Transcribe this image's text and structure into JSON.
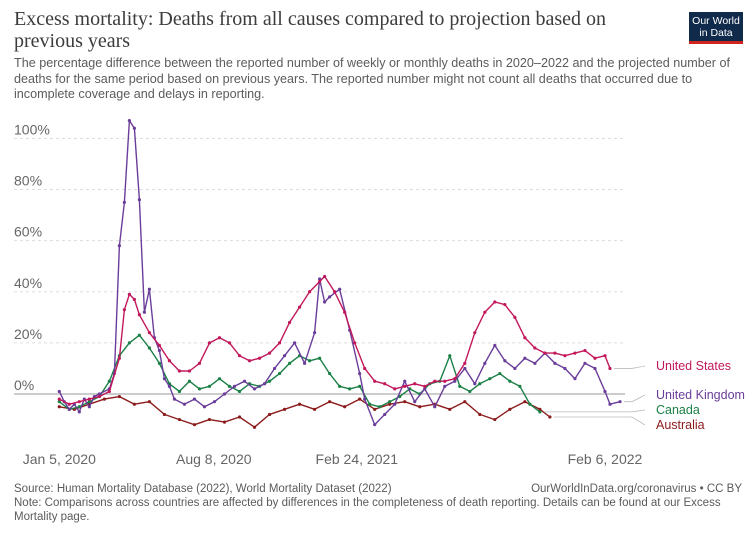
{
  "header": {
    "title": "Excess mortality: Deaths from all causes compared to projection based on previous years",
    "subtitle": "The percentage difference between the reported number of weekly or monthly deaths in 2020–2022 and the projected number of deaths for the same period based on previous years. The reported number might not count all deaths that occurred due to incomplete coverage and delays in reporting.",
    "logo_line1": "Our World",
    "logo_line2": "in Data"
  },
  "footer": {
    "source": "Source: Human Mortality Database (2022), World Mortality Dataset (2022)",
    "site": "OurWorldInData.org/coronavirus • CC BY",
    "note": "Note: Comparisons across countries are affected by differences in the completeness of death reporting. Details can be found at our Excess Mortality page."
  },
  "chart_data": {
    "type": "line",
    "ylim": [
      -18,
      108
    ],
    "yticks": [
      0,
      20,
      40,
      60,
      80,
      100
    ],
    "ytick_labels": [
      "0%",
      "20%",
      "40%",
      "60%",
      "80%",
      "100%"
    ],
    "xlim": [
      "2019-12-30",
      "2022-03-06"
    ],
    "xticks": [
      "2020-01-05",
      "2020-08-08",
      "2021-02-24",
      "2022-02-06"
    ],
    "xtick_labels": [
      "Jan 5, 2020",
      "Aug 8, 2020",
      "Feb 24, 2021",
      "Feb 6, 2022"
    ],
    "grid": "horizontal dashed",
    "legend": "right, labels at line ends",
    "series": [
      {
        "name": "United States",
        "color": "#c2185b",
        "points": [
          [
            "2020-01-05",
            -2
          ],
          [
            "2020-01-19",
            -4
          ],
          [
            "2020-02-02",
            -3
          ],
          [
            "2020-02-16",
            -2
          ],
          [
            "2020-03-01",
            -1
          ],
          [
            "2020-03-15",
            1
          ],
          [
            "2020-03-29",
            14
          ],
          [
            "2020-04-05",
            33
          ],
          [
            "2020-04-12",
            39
          ],
          [
            "2020-04-19",
            37
          ],
          [
            "2020-04-26",
            31
          ],
          [
            "2020-05-10",
            24
          ],
          [
            "2020-05-24",
            19
          ],
          [
            "2020-06-07",
            13
          ],
          [
            "2020-06-21",
            9
          ],
          [
            "2020-07-05",
            9
          ],
          [
            "2020-07-19",
            12
          ],
          [
            "2020-08-02",
            20
          ],
          [
            "2020-08-16",
            22
          ],
          [
            "2020-08-30",
            20
          ],
          [
            "2020-09-13",
            15
          ],
          [
            "2020-09-27",
            13
          ],
          [
            "2020-10-11",
            14
          ],
          [
            "2020-10-25",
            16
          ],
          [
            "2020-11-08",
            20
          ],
          [
            "2020-11-22",
            28
          ],
          [
            "2020-12-06",
            34
          ],
          [
            "2020-12-20",
            40
          ],
          [
            "2021-01-03",
            44
          ],
          [
            "2021-01-10",
            46
          ],
          [
            "2021-01-24",
            40
          ],
          [
            "2021-02-07",
            32
          ],
          [
            "2021-02-21",
            20
          ],
          [
            "2021-03-07",
            10
          ],
          [
            "2021-03-21",
            5
          ],
          [
            "2021-04-04",
            4
          ],
          [
            "2021-04-18",
            2
          ],
          [
            "2021-05-02",
            3
          ],
          [
            "2021-05-16",
            4
          ],
          [
            "2021-05-30",
            3
          ],
          [
            "2021-06-13",
            5
          ],
          [
            "2021-06-27",
            5
          ],
          [
            "2021-07-11",
            6
          ],
          [
            "2021-07-25",
            12
          ],
          [
            "2021-08-08",
            24
          ],
          [
            "2021-08-22",
            32
          ],
          [
            "2021-09-05",
            36
          ],
          [
            "2021-09-19",
            35
          ],
          [
            "2021-10-03",
            30
          ],
          [
            "2021-10-17",
            22
          ],
          [
            "2021-10-31",
            18
          ],
          [
            "2021-11-14",
            16
          ],
          [
            "2021-11-28",
            16
          ],
          [
            "2021-12-12",
            15
          ],
          [
            "2021-12-26",
            16
          ],
          [
            "2022-01-09",
            17
          ],
          [
            "2022-01-23",
            14
          ],
          [
            "2022-02-06",
            15
          ],
          [
            "2022-02-13",
            10
          ]
        ]
      },
      {
        "name": "United Kingdom",
        "color": "#6a3d9a",
        "points": [
          [
            "2020-01-05",
            1
          ],
          [
            "2020-01-12",
            -3
          ],
          [
            "2020-01-19",
            -6
          ],
          [
            "2020-01-26",
            -4
          ],
          [
            "2020-02-02",
            -7
          ],
          [
            "2020-02-09",
            -2
          ],
          [
            "2020-02-16",
            -5
          ],
          [
            "2020-02-23",
            -1
          ],
          [
            "2020-03-01",
            0
          ],
          [
            "2020-03-15",
            2
          ],
          [
            "2020-03-22",
            8
          ],
          [
            "2020-03-29",
            58
          ],
          [
            "2020-04-05",
            75
          ],
          [
            "2020-04-12",
            107
          ],
          [
            "2020-04-19",
            104
          ],
          [
            "2020-04-26",
            76
          ],
          [
            "2020-05-03",
            32
          ],
          [
            "2020-05-10",
            41
          ],
          [
            "2020-05-17",
            22
          ],
          [
            "2020-05-24",
            17
          ],
          [
            "2020-05-31",
            6
          ],
          [
            "2020-06-07",
            3
          ],
          [
            "2020-06-14",
            -2
          ],
          [
            "2020-06-28",
            -4
          ],
          [
            "2020-07-12",
            -2
          ],
          [
            "2020-07-26",
            -5
          ],
          [
            "2020-08-09",
            -3
          ],
          [
            "2020-08-23",
            0
          ],
          [
            "2020-09-06",
            3
          ],
          [
            "2020-09-20",
            5
          ],
          [
            "2020-10-04",
            2
          ],
          [
            "2020-10-18",
            4
          ],
          [
            "2020-11-01",
            10
          ],
          [
            "2020-11-15",
            15
          ],
          [
            "2020-11-29",
            20
          ],
          [
            "2020-12-13",
            12
          ],
          [
            "2020-12-27",
            24
          ],
          [
            "2021-01-03",
            45
          ],
          [
            "2021-01-10",
            36
          ],
          [
            "2021-01-17",
            38
          ],
          [
            "2021-01-31",
            41
          ],
          [
            "2021-02-14",
            25
          ],
          [
            "2021-02-28",
            8
          ],
          [
            "2021-03-07",
            -2
          ],
          [
            "2021-03-21",
            -12
          ],
          [
            "2021-04-04",
            -8
          ],
          [
            "2021-04-18",
            -4
          ],
          [
            "2021-05-02",
            5
          ],
          [
            "2021-05-16",
            -3
          ],
          [
            "2021-05-30",
            2
          ],
          [
            "2021-06-13",
            -5
          ],
          [
            "2021-06-27",
            3
          ],
          [
            "2021-07-11",
            5
          ],
          [
            "2021-07-25",
            10
          ],
          [
            "2021-08-08",
            4
          ],
          [
            "2021-08-22",
            12
          ],
          [
            "2021-09-05",
            19
          ],
          [
            "2021-09-19",
            13
          ],
          [
            "2021-10-03",
            10
          ],
          [
            "2021-10-17",
            14
          ],
          [
            "2021-10-31",
            12
          ],
          [
            "2021-11-14",
            16
          ],
          [
            "2021-11-28",
            12
          ],
          [
            "2021-12-12",
            10
          ],
          [
            "2021-12-26",
            6
          ],
          [
            "2022-01-09",
            12
          ],
          [
            "2022-01-23",
            10
          ],
          [
            "2022-02-06",
            1
          ],
          [
            "2022-02-13",
            -4
          ],
          [
            "2022-02-27",
            -3
          ]
        ]
      },
      {
        "name": "Canada",
        "color": "#1a8046",
        "points": [
          [
            "2020-01-05",
            -3
          ],
          [
            "2020-01-19",
            -6
          ],
          [
            "2020-02-02",
            -5
          ],
          [
            "2020-02-16",
            -3
          ],
          [
            "2020-03-01",
            -1
          ],
          [
            "2020-03-15",
            5
          ],
          [
            "2020-03-29",
            15
          ],
          [
            "2020-04-12",
            20
          ],
          [
            "2020-04-26",
            23
          ],
          [
            "2020-05-10",
            18
          ],
          [
            "2020-05-24",
            12
          ],
          [
            "2020-06-07",
            4
          ],
          [
            "2020-06-21",
            1
          ],
          [
            "2020-07-05",
            5
          ],
          [
            "2020-07-19",
            2
          ],
          [
            "2020-08-02",
            3
          ],
          [
            "2020-08-16",
            6
          ],
          [
            "2020-08-30",
            3
          ],
          [
            "2020-09-13",
            1
          ],
          [
            "2020-09-27",
            4
          ],
          [
            "2020-10-11",
            3
          ],
          [
            "2020-10-25",
            5
          ],
          [
            "2020-11-08",
            8
          ],
          [
            "2020-11-22",
            12
          ],
          [
            "2020-12-06",
            15
          ],
          [
            "2020-12-20",
            13
          ],
          [
            "2021-01-03",
            14
          ],
          [
            "2021-01-17",
            8
          ],
          [
            "2021-01-31",
            3
          ],
          [
            "2021-02-14",
            2
          ],
          [
            "2021-02-28",
            3
          ],
          [
            "2021-03-14",
            -4
          ],
          [
            "2021-03-28",
            -5
          ],
          [
            "2021-04-11",
            -3
          ],
          [
            "2021-04-25",
            -1
          ],
          [
            "2021-05-09",
            2
          ],
          [
            "2021-05-23",
            0
          ],
          [
            "2021-06-06",
            4
          ],
          [
            "2021-06-20",
            5
          ],
          [
            "2021-07-04",
            15
          ],
          [
            "2021-07-18",
            3
          ],
          [
            "2021-08-01",
            1
          ],
          [
            "2021-08-15",
            4
          ],
          [
            "2021-08-29",
            6
          ],
          [
            "2021-09-12",
            8
          ],
          [
            "2021-09-26",
            5
          ],
          [
            "2021-10-10",
            3
          ],
          [
            "2021-10-24",
            -4
          ],
          [
            "2021-11-07",
            -7
          ]
        ]
      },
      {
        "name": "Australia",
        "color": "#8c1c1c",
        "points": [
          [
            "2020-01-05",
            -5
          ],
          [
            "2020-01-26",
            -6
          ],
          [
            "2020-02-16",
            -4
          ],
          [
            "2020-03-08",
            -2
          ],
          [
            "2020-03-29",
            -1
          ],
          [
            "2020-04-19",
            -4
          ],
          [
            "2020-05-10",
            -3
          ],
          [
            "2020-05-31",
            -8
          ],
          [
            "2020-06-21",
            -10
          ],
          [
            "2020-07-12",
            -12
          ],
          [
            "2020-08-02",
            -10
          ],
          [
            "2020-08-23",
            -11
          ],
          [
            "2020-09-13",
            -9
          ],
          [
            "2020-10-04",
            -13
          ],
          [
            "2020-10-25",
            -8
          ],
          [
            "2020-11-15",
            -6
          ],
          [
            "2020-12-06",
            -4
          ],
          [
            "2020-12-27",
            -6
          ],
          [
            "2021-01-17",
            -3
          ],
          [
            "2021-02-07",
            -5
          ],
          [
            "2021-02-28",
            -2
          ],
          [
            "2021-03-21",
            -6
          ],
          [
            "2021-04-11",
            -4
          ],
          [
            "2021-05-02",
            -3
          ],
          [
            "2021-05-23",
            -5
          ],
          [
            "2021-06-13",
            -4
          ],
          [
            "2021-07-04",
            -6
          ],
          [
            "2021-07-25",
            -3
          ],
          [
            "2021-08-15",
            -8
          ],
          [
            "2021-09-05",
            -10
          ],
          [
            "2021-09-26",
            -6
          ],
          [
            "2021-10-17",
            -3
          ],
          [
            "2021-11-07",
            -6
          ],
          [
            "2021-11-21",
            -9
          ]
        ]
      }
    ],
    "legend_order": [
      "United States",
      "United Kingdom",
      "Canada",
      "Australia"
    ]
  }
}
